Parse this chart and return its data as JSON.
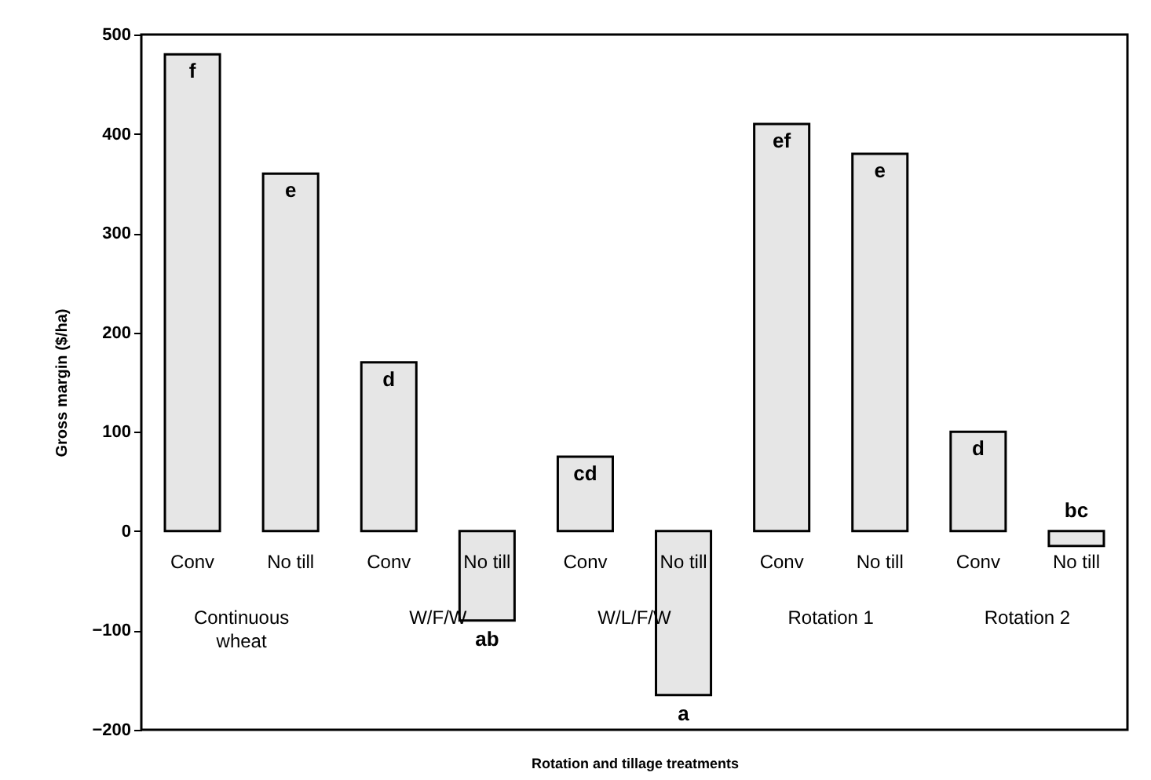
{
  "chart_data": {
    "type": "bar",
    "xlabel": "Rotation and tillage treatments",
    "ylabel": "Gross margin ($/ha)",
    "categories": [
      "Conv",
      "No till",
      "Conv",
      "No till",
      "Conv",
      "No till",
      "Conv",
      "No till",
      "Conv",
      "No till"
    ],
    "values": [
      480,
      360,
      170,
      -90,
      75,
      -165,
      410,
      380,
      100,
      -15
    ],
    "value_labels": [
      "f",
      "e",
      "d",
      "ab",
      "cd",
      "a",
      "ef",
      "e",
      "d",
      "bc"
    ],
    "color": "#e6e6e6",
    "annotations": [
      "Continuous wheat",
      "W/F/W",
      "W/L/F/W",
      "Rotation 1",
      "Rotation 2"
    ],
    "ylim": [
      -200,
      500
    ],
    "yticks": [
      -200,
      -100,
      0,
      100,
      200,
      300,
      400,
      500
    ],
    "grid": false
  }
}
